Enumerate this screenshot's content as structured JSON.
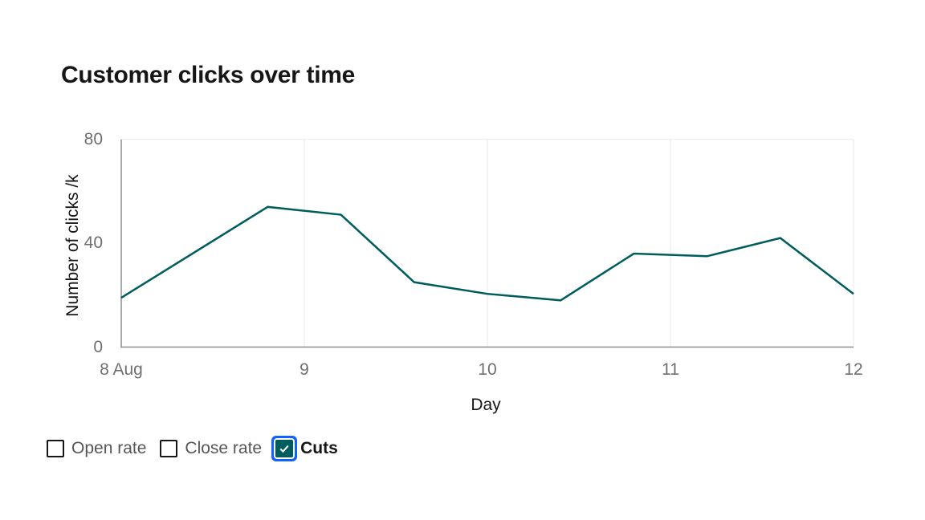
{
  "chart_data": {
    "type": "line",
    "title": "Customer clicks over time",
    "xlabel": "Day",
    "ylabel": "Number of clicks /k",
    "xlim": [
      8,
      12
    ],
    "ylim": [
      0,
      80
    ],
    "x_ticks": [
      {
        "value": 8,
        "label": "8 Aug"
      },
      {
        "value": 9,
        "label": "9"
      },
      {
        "value": 10,
        "label": "10"
      },
      {
        "value": 11,
        "label": "11"
      },
      {
        "value": 12,
        "label": "12"
      }
    ],
    "y_ticks": [
      {
        "value": 0,
        "label": "0"
      },
      {
        "value": 40,
        "label": "40"
      },
      {
        "value": 80,
        "label": "80"
      }
    ],
    "grid": {
      "vertical": true,
      "horizontal": false,
      "top_rule": true
    },
    "legend_position": "bottom-left",
    "series": [
      {
        "name": "Cuts",
        "color": "#005d5d",
        "x": [
          8,
          8.8,
          9.2,
          9.6,
          10,
          10.4,
          10.8,
          11.2,
          11.6,
          12
        ],
        "y": [
          19,
          54,
          51,
          25,
          20.5,
          18,
          36,
          35,
          42,
          20.5
        ]
      }
    ],
    "legend": [
      {
        "label": "Open rate",
        "checked": false
      },
      {
        "label": "Close rate",
        "checked": false
      },
      {
        "label": "Cuts",
        "checked": true,
        "color": "#005d5d"
      }
    ]
  },
  "colors": {
    "line": "#005d5d",
    "focus_ring": "#0f62fe",
    "axis_line": "#8d8d8d",
    "gridline": "#e8e8e8",
    "title_text": "#161616",
    "tick_text": "#6f6f6f",
    "legend_text": "#565656",
    "checkmark": "#ffffff"
  }
}
